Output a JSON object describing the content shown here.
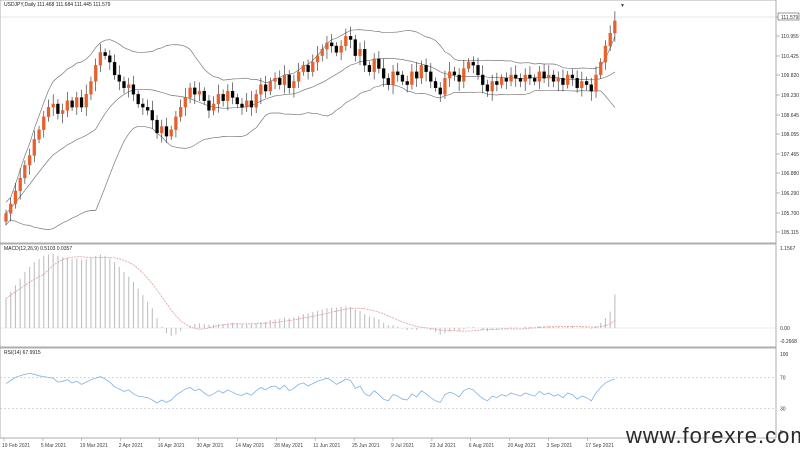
{
  "chart_data": {
    "type": "candlestick",
    "header": "USDJPY,Daily  111.468 111.684 111.445 111.579",
    "colors": {
      "bull": "#e8612c",
      "bear": "#000000",
      "bands": "#7a7a7a",
      "signal": "#e59a9a",
      "histogram": "#c0c0c0",
      "rsi": "#7fb3e8",
      "level": "#b0b0b0",
      "last_price_box": "#ffffff"
    },
    "price_axis": {
      "ticks": [
        "111.579",
        "110.955",
        "110.425",
        "109.820",
        "109.230",
        "108.645",
        "108.055",
        "107.465",
        "106.880",
        "106.290",
        "105.700",
        "105.115"
      ],
      "range": [
        104.9,
        111.7
      ]
    },
    "x_labels": [
      "19 Feb 2021",
      "5 Mar 2021",
      "19 Mar 2021",
      "2 Apr 2021",
      "16 Apr 2021",
      "30 Apr 2021",
      "14 May 2021",
      "28 May 2021",
      "11 Jun 2021",
      "25 Jun 2021",
      "9 Jul 2021",
      "23 Jul 2021",
      "6 Aug 2021",
      "20 Aug 2021",
      "3 Sep 2021",
      "17 Sep 2021"
    ],
    "closes": [
      105.6,
      105.9,
      106.3,
      106.7,
      107.1,
      107.4,
      107.9,
      108.2,
      108.6,
      108.9,
      109.0,
      108.7,
      108.8,
      109.1,
      108.9,
      109.2,
      108.9,
      109.3,
      109.7,
      110.2,
      110.6,
      110.5,
      110.3,
      109.9,
      109.7,
      109.5,
      109.6,
      109.3,
      109.0,
      108.9,
      108.8,
      108.5,
      108.1,
      108.3,
      108.0,
      108.2,
      108.6,
      108.9,
      109.2,
      109.5,
      109.3,
      109.4,
      109.1,
      108.8,
      109.0,
      109.3,
      109.1,
      109.4,
      109.2,
      109.0,
      108.9,
      109.1,
      108.9,
      109.3,
      109.6,
      109.4,
      109.7,
      109.8,
      109.6,
      109.9,
      109.5,
      109.7,
      110.0,
      110.2,
      110.0,
      110.3,
      110.5,
      110.7,
      110.9,
      110.8,
      110.6,
      110.8,
      111.1,
      111.0,
      110.5,
      110.7,
      110.2,
      110.0,
      110.4,
      110.1,
      109.8,
      109.6,
      110.0,
      109.9,
      109.7,
      109.6,
      110.0,
      109.8,
      110.2,
      110.0,
      109.7,
      109.5,
      109.3,
      109.8,
      110.0,
      109.9,
      109.7,
      110.1,
      110.3,
      110.2,
      109.9,
      109.6,
      109.4,
      109.7,
      109.6,
      109.8,
      109.7,
      109.9,
      109.8,
      109.7,
      109.9,
      109.8,
      109.7,
      110.0,
      109.8,
      109.9,
      109.7,
      109.8,
      109.6,
      109.9,
      109.8,
      109.5,
      109.7,
      109.6,
      109.4,
      109.9,
      110.3,
      110.8,
      111.2,
      111.58
    ],
    "macd_label": "MACD(12,26,9) 0.5103 0.0357",
    "macd_axis": [
      "1.1567",
      "0.00",
      "-0.2668"
    ],
    "macd_hist": [
      0.45,
      0.55,
      0.65,
      0.75,
      0.85,
      0.93,
      1.0,
      1.05,
      1.1,
      1.12,
      1.13,
      1.1,
      1.08,
      1.07,
      1.05,
      1.06,
      1.04,
      1.05,
      1.07,
      1.1,
      1.12,
      1.1,
      1.06,
      1.0,
      0.93,
      0.85,
      0.78,
      0.7,
      0.6,
      0.5,
      0.4,
      0.3,
      0.15,
      0.02,
      -0.08,
      -0.12,
      -0.1,
      -0.05,
      0.0,
      0.04,
      0.06,
      0.07,
      0.06,
      0.05,
      0.05,
      0.06,
      0.06,
      0.07,
      0.08,
      0.07,
      0.06,
      0.06,
      0.06,
      0.07,
      0.09,
      0.1,
      0.12,
      0.13,
      0.14,
      0.16,
      0.15,
      0.16,
      0.18,
      0.21,
      0.22,
      0.24,
      0.26,
      0.28,
      0.3,
      0.31,
      0.31,
      0.32,
      0.33,
      0.32,
      0.28,
      0.26,
      0.21,
      0.17,
      0.16,
      0.13,
      0.08,
      0.04,
      0.04,
      0.02,
      -0.01,
      -0.03,
      -0.02,
      -0.03,
      0.0,
      0.0,
      -0.03,
      -0.06,
      -0.1,
      -0.08,
      -0.05,
      -0.04,
      -0.05,
      -0.02,
      0.01,
      0.02,
      0.0,
      -0.03,
      -0.05,
      -0.03,
      -0.03,
      -0.01,
      -0.01,
      0.01,
      0.01,
      0.0,
      0.02,
      0.02,
      0.01,
      0.03,
      0.03,
      0.03,
      0.02,
      0.02,
      0.01,
      0.03,
      0.03,
      0.0,
      0.01,
      0.01,
      -0.01,
      0.03,
      0.08,
      0.15,
      0.25,
      0.5103
    ],
    "rsi_label": "RSI(14) 67.9915",
    "rsi_axis": [
      "100",
      "70",
      "30",
      "0"
    ],
    "rsi_values": [
      62,
      66,
      70,
      72,
      74,
      75,
      74,
      72,
      71,
      70,
      69,
      64,
      65,
      67,
      63,
      65,
      61,
      64,
      67,
      69,
      71,
      68,
      64,
      58,
      55,
      52,
      54,
      49,
      46,
      45,
      44,
      41,
      37,
      41,
      38,
      41,
      47,
      51,
      55,
      57,
      53,
      55,
      50,
      46,
      49,
      53,
      50,
      54,
      51,
      48,
      47,
      50,
      47,
      53,
      57,
      54,
      58,
      59,
      55,
      60,
      53,
      56,
      61,
      63,
      59,
      62,
      65,
      67,
      69,
      66,
      61,
      64,
      68,
      66,
      56,
      59,
      49,
      46,
      53,
      48,
      42,
      40,
      48,
      46,
      42,
      41,
      49,
      45,
      53,
      49,
      44,
      40,
      38,
      48,
      51,
      49,
      45,
      53,
      56,
      54,
      48,
      43,
      40,
      46,
      44,
      48,
      46,
      50,
      48,
      46,
      50,
      48,
      46,
      52,
      48,
      50,
      46,
      48,
      44,
      50,
      48,
      42,
      46,
      44,
      40,
      50,
      57,
      63,
      66,
      67.99
    ],
    "watermark": "www.forexre.com"
  }
}
